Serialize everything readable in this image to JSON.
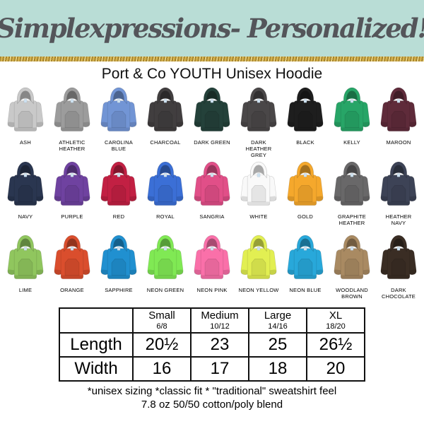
{
  "banner": {
    "title": "Simplexpressions- Personalized!",
    "bg_color": "#b9ddd6",
    "text_color": "#54555a",
    "glitter_color": "#c7a23d"
  },
  "product_title": "Port & Co YOUTH Unisex Hoodie",
  "swatch_rows": [
    [
      {
        "label": "ASH",
        "color": "#c9c9c9"
      },
      {
        "label": "ATHLETIC HEATHER",
        "color": "#9c9c9c"
      },
      {
        "label": "CAROLINA BLUE",
        "color": "#7295d5"
      },
      {
        "label": "CHARCOAL",
        "color": "#413e3f"
      },
      {
        "label": "DARK GREEN",
        "color": "#24413a"
      },
      {
        "label": "DARK HEATHER GREY",
        "color": "#4a4748"
      },
      {
        "label": "BLACK",
        "color": "#1e1e1e"
      },
      {
        "label": "KELLY",
        "color": "#27a567"
      },
      {
        "label": "MAROON",
        "color": "#5f2b3a"
      }
    ],
    [
      {
        "label": "NAVY",
        "color": "#2a3650"
      },
      {
        "label": "PURPLE",
        "color": "#6f42a0"
      },
      {
        "label": "RED",
        "color": "#c22043"
      },
      {
        "label": "ROYAL",
        "color": "#3b6fd6"
      },
      {
        "label": "SANGRIA",
        "color": "#e14f88"
      },
      {
        "label": "WHITE",
        "color": "#f9f9f9"
      },
      {
        "label": "GOLD",
        "color": "#f5a82c"
      },
      {
        "label": "GRAPHITE HEATHER",
        "color": "#696869"
      },
      {
        "label": "HEATHER NAVY",
        "color": "#3d4356"
      }
    ],
    [
      {
        "label": "LIME",
        "color": "#90c65e"
      },
      {
        "label": "ORANGE",
        "color": "#da4e2d"
      },
      {
        "label": "SAPPHIRE",
        "color": "#2090d0"
      },
      {
        "label": "NEON GREEN",
        "color": "#80e954"
      },
      {
        "label": "NEON PINK",
        "color": "#fa70a9"
      },
      {
        "label": "NEON YELLOW",
        "color": "#e2ef52"
      },
      {
        "label": "NEON BLUE",
        "color": "#28a8da"
      },
      {
        "label": "WOODLAND BROWN",
        "color": "#a98a62"
      },
      {
        "label": "DARK CHOCOLATE",
        "color": "#3a2d24"
      }
    ]
  ],
  "size_table": {
    "columns": [
      {
        "size": "Small",
        "range": "6/8"
      },
      {
        "size": "Medium",
        "range": "10/12"
      },
      {
        "size": "Large",
        "range": "14/16"
      },
      {
        "size": "XL",
        "range": "18/20"
      }
    ],
    "rows": [
      {
        "label": "Length",
        "values": [
          "20½",
          "23",
          "25",
          "26½"
        ]
      },
      {
        "label": "Width",
        "values": [
          "16",
          "17",
          "18",
          "20"
        ]
      }
    ]
  },
  "footnotes": [
    "*unisex sizing *classic fit * \"traditional\" sweatshirt feel",
    "7.8 oz 50/50 cotton/poly blend"
  ]
}
